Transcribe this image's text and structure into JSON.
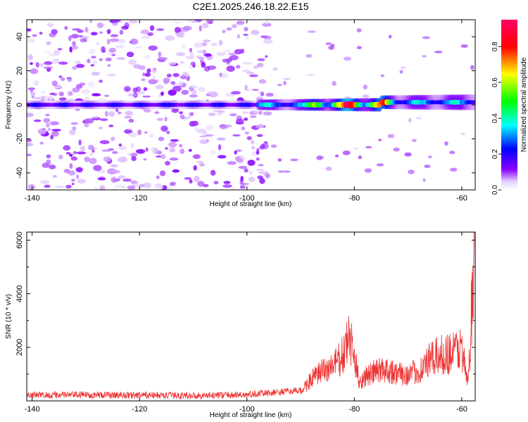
{
  "chart_data": [
    {
      "type": "heatmap",
      "title": "C2E1.2025.246.18.22.E15",
      "xlabel": "Height of straight line (km)",
      "ylabel": "Frequency (Hz)",
      "xlim": [
        -141,
        -57.5
      ],
      "ylim": [
        -50,
        50
      ],
      "x_ticks": [
        -140,
        -120,
        -100,
        -80,
        -60
      ],
      "y_ticks": [
        -40,
        -20,
        0,
        20,
        40
      ],
      "colorbar": {
        "label": "Normalized spectral amplitude",
        "range": [
          0,
          0.95
        ],
        "ticks": [
          0,
          0.2,
          0.4,
          0.6,
          0.8
        ],
        "tick_labels": [
          "0.0",
          "0.2",
          "0.4",
          "0.6",
          "0.8"
        ],
        "colormap": [
          "#ffffff",
          "#8a00ff",
          "#0000ff",
          "#00ffff",
          "#00ff00",
          "#ffff00",
          "#ff0000",
          "#ff0066"
        ]
      },
      "features": [
        {
          "name": "scattered noise",
          "x_range": [
            -141,
            -98
          ],
          "f_range": [
            -50,
            50
          ],
          "amplitude": 0.05
        },
        {
          "name": "carrier line",
          "frequency": 0,
          "x_range": [
            -141,
            -57.5
          ],
          "amplitude_range": [
            0.1,
            0.95
          ],
          "peak_x": -81
        }
      ]
    },
    {
      "type": "line",
      "xlabel": "Height of straight line (km)",
      "ylabel": "SNR (10 * v/v)",
      "xlim": [
        -141,
        -57.5
      ],
      "ylim": [
        0,
        6300
      ],
      "x_ticks": [
        -140,
        -120,
        -100,
        -80,
        -60
      ],
      "y_ticks": [
        2000,
        4000,
        6000
      ],
      "color": "#ee3333",
      "series": [
        {
          "name": "SNR",
          "x": [
            -141,
            -130,
            -120,
            -110,
            -100,
            -98,
            -95,
            -92,
            -90,
            -88,
            -86,
            -84,
            -82,
            -81,
            -80,
            -79,
            -78,
            -76,
            -74,
            -72,
            -70,
            -68,
            -66,
            -64,
            -62,
            -60,
            -59,
            -58.5,
            -58,
            -57.5
          ],
          "values": [
            180,
            190,
            170,
            160,
            190,
            230,
            270,
            320,
            350,
            800,
            1100,
            1300,
            1700,
            2400,
            1600,
            700,
            900,
            1100,
            1200,
            1000,
            1000,
            1100,
            1500,
            1700,
            1800,
            2000,
            700,
            1500,
            4500,
            6200
          ]
        }
      ]
    }
  ]
}
